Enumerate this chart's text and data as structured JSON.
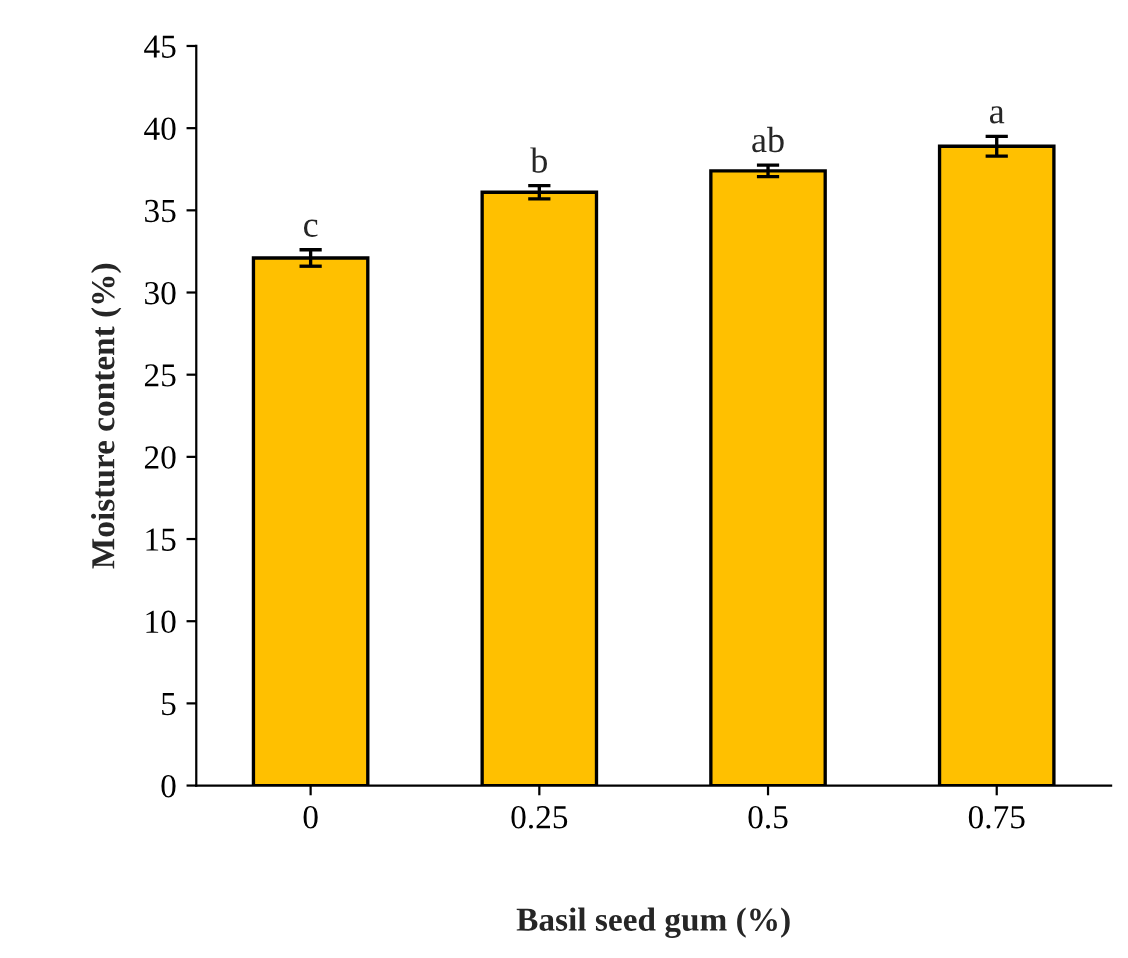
{
  "chart_data": {
    "type": "bar",
    "xlabel": "Basil seed gum (%)",
    "ylabel": "Moisture content (%)",
    "categories": [
      "0",
      "0.25",
      "0.5",
      "0.75"
    ],
    "values": [
      32.1,
      36.1,
      37.4,
      38.9
    ],
    "errors": [
      0.5,
      0.4,
      0.35,
      0.6
    ],
    "color": "#ffc000",
    "ylim": [
      0,
      45
    ],
    "yticks": [
      0,
      5,
      10,
      15,
      20,
      25,
      30,
      35,
      40,
      45
    ],
    "annotations": [
      {
        "text": "c",
        "x": "0",
        "y": 32.6
      },
      {
        "text": "b",
        "x": "0.25",
        "y": 36.5
      },
      {
        "text": "ab",
        "x": "0.5",
        "y": 37.75
      },
      {
        "text": "a",
        "x": "0.75",
        "y": 39.5
      }
    ],
    "grid": false,
    "legend": false
  }
}
